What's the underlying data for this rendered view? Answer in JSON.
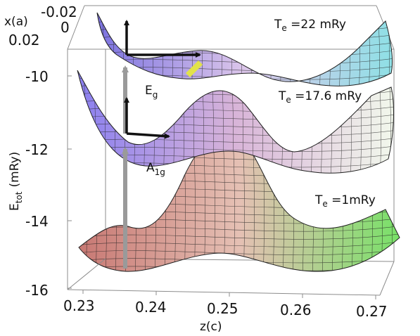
{
  "x_axis": {
    "label": "x(a)",
    "ticks": [
      "-0.02",
      "0",
      "0.02"
    ]
  },
  "y_axis": {
    "label": "E",
    "label_sub": "tot",
    "label_unit": "(mRy)",
    "ticks": [
      "-10",
      "-12",
      "-14",
      "-16"
    ]
  },
  "z_axis": {
    "label": "z(c)",
    "ticks": [
      "0.23",
      "0.24",
      "0.25",
      "0.26",
      "0.27"
    ]
  },
  "surfaces": [
    {
      "main": "T",
      "sub": "e",
      "rest": " =22 mRy",
      "color_left": "#7b72e0",
      "color_mid": "#dcc6ea",
      "color_right": "#8fe0e6"
    },
    {
      "main": "T",
      "sub": "e",
      "rest": " =17.6 mRy",
      "color_left": "#8a7ff0",
      "color_mid": "#d8b4d8",
      "color_right": "#f2f8ec"
    },
    {
      "main": "T",
      "sub": "e",
      "rest": " =1mRy",
      "color_left": "#c87873",
      "color_mid": "#e5c0b4",
      "color_right": "#78e068"
    }
  ],
  "modes": {
    "eg": {
      "main": "E",
      "sub": "g"
    },
    "a1g": {
      "main": "A",
      "sub": "1g"
    }
  },
  "colors": {
    "arrow": "#111111",
    "vertical_arrow": "#9a9a9a",
    "highlight": "#e2e24a",
    "mesh": "#202020",
    "box": "#8c8c8c"
  }
}
